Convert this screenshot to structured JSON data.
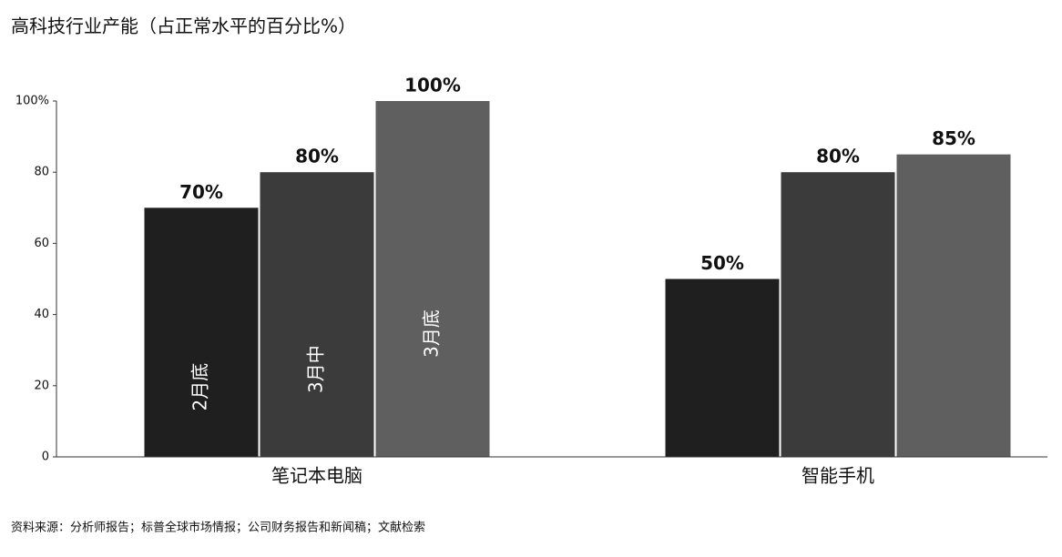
{
  "chart_data": {
    "type": "bar",
    "title": "高科技行业产能（占正常水平的百分比%）",
    "categories": [
      "笔记本电脑",
      "智能手机"
    ],
    "series": [
      {
        "name": "2月底",
        "color": "#1f1f1f",
        "values": [
          70,
          50
        ],
        "value_labels": [
          "70%",
          "50%"
        ]
      },
      {
        "name": "3月中",
        "color": "#3b3b3b",
        "values": [
          80,
          80
        ],
        "value_labels": [
          "80%",
          "80%"
        ]
      },
      {
        "name": "3月底",
        "color": "#5f5f5f",
        "values": [
          100,
          85
        ],
        "value_labels": [
          "100%",
          "85%"
        ]
      }
    ],
    "ylim": [
      0,
      100
    ],
    "yticks": [
      0,
      20,
      40,
      60,
      80,
      {
        "value": 100,
        "label": "100%"
      }
    ],
    "source": "资料来源：分析师报告；标普全球市场情报；公司财务报告和新闻稿；文献检索"
  }
}
